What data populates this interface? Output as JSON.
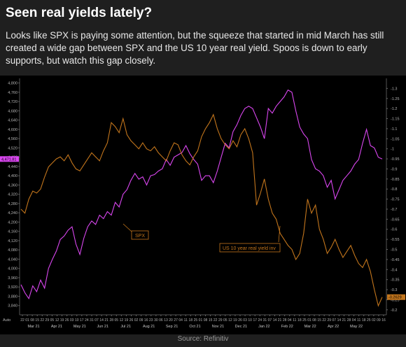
{
  "header": {
    "title": "Seen real yields lately?",
    "subtitle": "Looks like SPX is paying some attention, but the squeeze that started in mid March has still created a wide gap between SPX and the US 10 year real yield. Spoos is down to early supports, but watch this gap closely."
  },
  "source": "Source: Refinitiv",
  "colors": {
    "spx": "#d946ef",
    "real_yield": "#c2751c",
    "background": "#000000",
    "axis_text": "#b5b5b5"
  },
  "chart_data": {
    "type": "line",
    "left_axis": {
      "ylim": [
        3800,
        4820
      ],
      "ticks": [
        3840,
        3880,
        3920,
        3960,
        4000,
        4040,
        4080,
        4120,
        4160,
        4200,
        4240,
        4280,
        4320,
        4360,
        4400,
        4440,
        4480,
        4520,
        4560,
        4600,
        4640,
        4680,
        4720,
        4760,
        4800
      ],
      "ytick_labels": [
        "3,840",
        "3,880",
        "3,920",
        "3,960",
        "4,000",
        "4,040",
        "4,080",
        "4,120",
        "4,160",
        "4,200",
        "4,240",
        "4,280",
        "4,320",
        "4,360",
        "4,400",
        "4,440",
        "4,480",
        "4,520",
        "4,560",
        "4,600",
        "4,640",
        "4,680",
        "4,720",
        "4,760",
        "4,800"
      ]
    },
    "right_axis": {
      "ylim": [
        -0.175,
        -1.35
      ],
      "inverted": true,
      "ticks": [
        -1.3,
        -1.25,
        -1.2,
        -1.15,
        -1.1,
        -1.05,
        -1,
        -0.95,
        -0.9,
        -0.85,
        -0.8,
        -0.75,
        -0.7,
        -0.65,
        -0.6,
        -0.55,
        -0.5,
        -0.45,
        -0.4,
        -0.35,
        -0.3,
        -0.25,
        -0.2
      ],
      "ytick_labels": [
        "-1.3",
        "-1.25",
        "-1.2",
        "-1.15",
        "-1.1",
        "-1.05",
        "-1",
        "-0.95",
        "-0.9",
        "-0.85",
        "-0.8",
        "-0.75",
        "-0.7",
        "-0.65",
        "-0.6",
        "-0.55",
        "-0.5",
        "-0.45",
        "-0.4",
        "-0.35",
        "-0.3",
        "-0.25",
        "-0.2"
      ]
    },
    "x_month_labels": [
      "Mar 21",
      "Apr 21",
      "May 21",
      "Jun 21",
      "Jul 21",
      "Aug 21",
      "Sep 21",
      "Oct 21",
      "Nov 21",
      "Dec 21",
      "Jan 22",
      "Feb 22",
      "Mar 22",
      "Apr 22",
      "May 22"
    ],
    "x_day_labels": [
      "22",
      "01",
      "08",
      "15",
      "22",
      "29",
      "05",
      "12",
      "19",
      "26",
      "03",
      "10",
      "17",
      "24",
      "31",
      "07",
      "14",
      "21",
      "28",
      "05",
      "12",
      "19",
      "26",
      "02",
      "09",
      "16",
      "23",
      "30",
      "06",
      "13",
      "20",
      "27",
      "04",
      "11",
      "18",
      "25",
      "01",
      "08",
      "15",
      "22",
      "29",
      "05",
      "12",
      "19",
      "26",
      "03",
      "10",
      "17",
      "24",
      "31",
      "07",
      "14",
      "21",
      "28",
      "04",
      "11",
      "18",
      "25",
      "01",
      "08",
      "15",
      "22",
      "29",
      "07",
      "14",
      "21",
      "28",
      "04",
      "11",
      "18",
      "25",
      "02",
      "09",
      "16"
    ],
    "last_value_labels": {
      "spx": "4,471.81",
      "real_yield": "-0.2629"
    },
    "axis_unit_label": "Auto",
    "series": [
      {
        "name": "SPX",
        "label": "SPX",
        "axis": "left",
        "values": [
          3930,
          3895,
          3870,
          3925,
          3900,
          3950,
          3915,
          4000,
          4040,
          4075,
          4125,
          4140,
          4165,
          4180,
          4105,
          4060,
          4130,
          4180,
          4205,
          4190,
          4230,
          4215,
          4245,
          4230,
          4285,
          4265,
          4320,
          4340,
          4380,
          4410,
          4385,
          4395,
          4360,
          4400,
          4405,
          4420,
          4430,
          4470,
          4445,
          4480,
          4490,
          4500,
          4530,
          4495,
          4470,
          4450,
          4380,
          4400,
          4400,
          4370,
          4420,
          4480,
          4540,
          4520,
          4590,
          4620,
          4660,
          4690,
          4700,
          4690,
          4650,
          4610,
          4560,
          4690,
          4670,
          4700,
          4720,
          4740,
          4770,
          4760,
          4680,
          4610,
          4580,
          4560,
          4470,
          4430,
          4420,
          4400,
          4350,
          4380,
          4300,
          4340,
          4380,
          4400,
          4420,
          4450,
          4470,
          4540,
          4600,
          4530,
          4520,
          4480,
          4472
        ]
      },
      {
        "name": "US 10 year real yield inv",
        "label": "US 10 year real yield inv",
        "axis": "right",
        "values": [
          -0.7,
          -0.68,
          -0.75,
          -0.79,
          -0.78,
          -0.8,
          -0.86,
          -0.91,
          -0.93,
          -0.95,
          -0.96,
          -0.94,
          -0.97,
          -0.93,
          -0.9,
          -0.89,
          -0.92,
          -0.95,
          -0.98,
          -0.96,
          -0.94,
          -0.99,
          -1.03,
          -1.13,
          -1.11,
          -1.08,
          -1.15,
          -1.07,
          -1.04,
          -1.02,
          -1.0,
          -1.03,
          -1.0,
          -0.99,
          -1.01,
          -0.98,
          -0.96,
          -0.94,
          -0.99,
          -1.03,
          -1.02,
          -0.97,
          -0.94,
          -0.92,
          -0.96,
          -0.99,
          -1.06,
          -1.1,
          -1.13,
          -1.17,
          -1.1,
          -1.05,
          -1.02,
          -1.0,
          -1.04,
          -1.01,
          -1.07,
          -1.1,
          -1.05,
          -0.98,
          -0.72,
          -0.78,
          -0.85,
          -0.75,
          -0.68,
          -0.65,
          -0.58,
          -0.55,
          -0.52,
          -0.5,
          -0.45,
          -0.48,
          -0.58,
          -0.75,
          -0.68,
          -0.72,
          -0.6,
          -0.55,
          -0.48,
          -0.51,
          -0.55,
          -0.5,
          -0.46,
          -0.49,
          -0.52,
          -0.47,
          -0.43,
          -0.41,
          -0.45,
          -0.39,
          -0.3,
          -0.22,
          -0.2629
        ]
      }
    ]
  }
}
